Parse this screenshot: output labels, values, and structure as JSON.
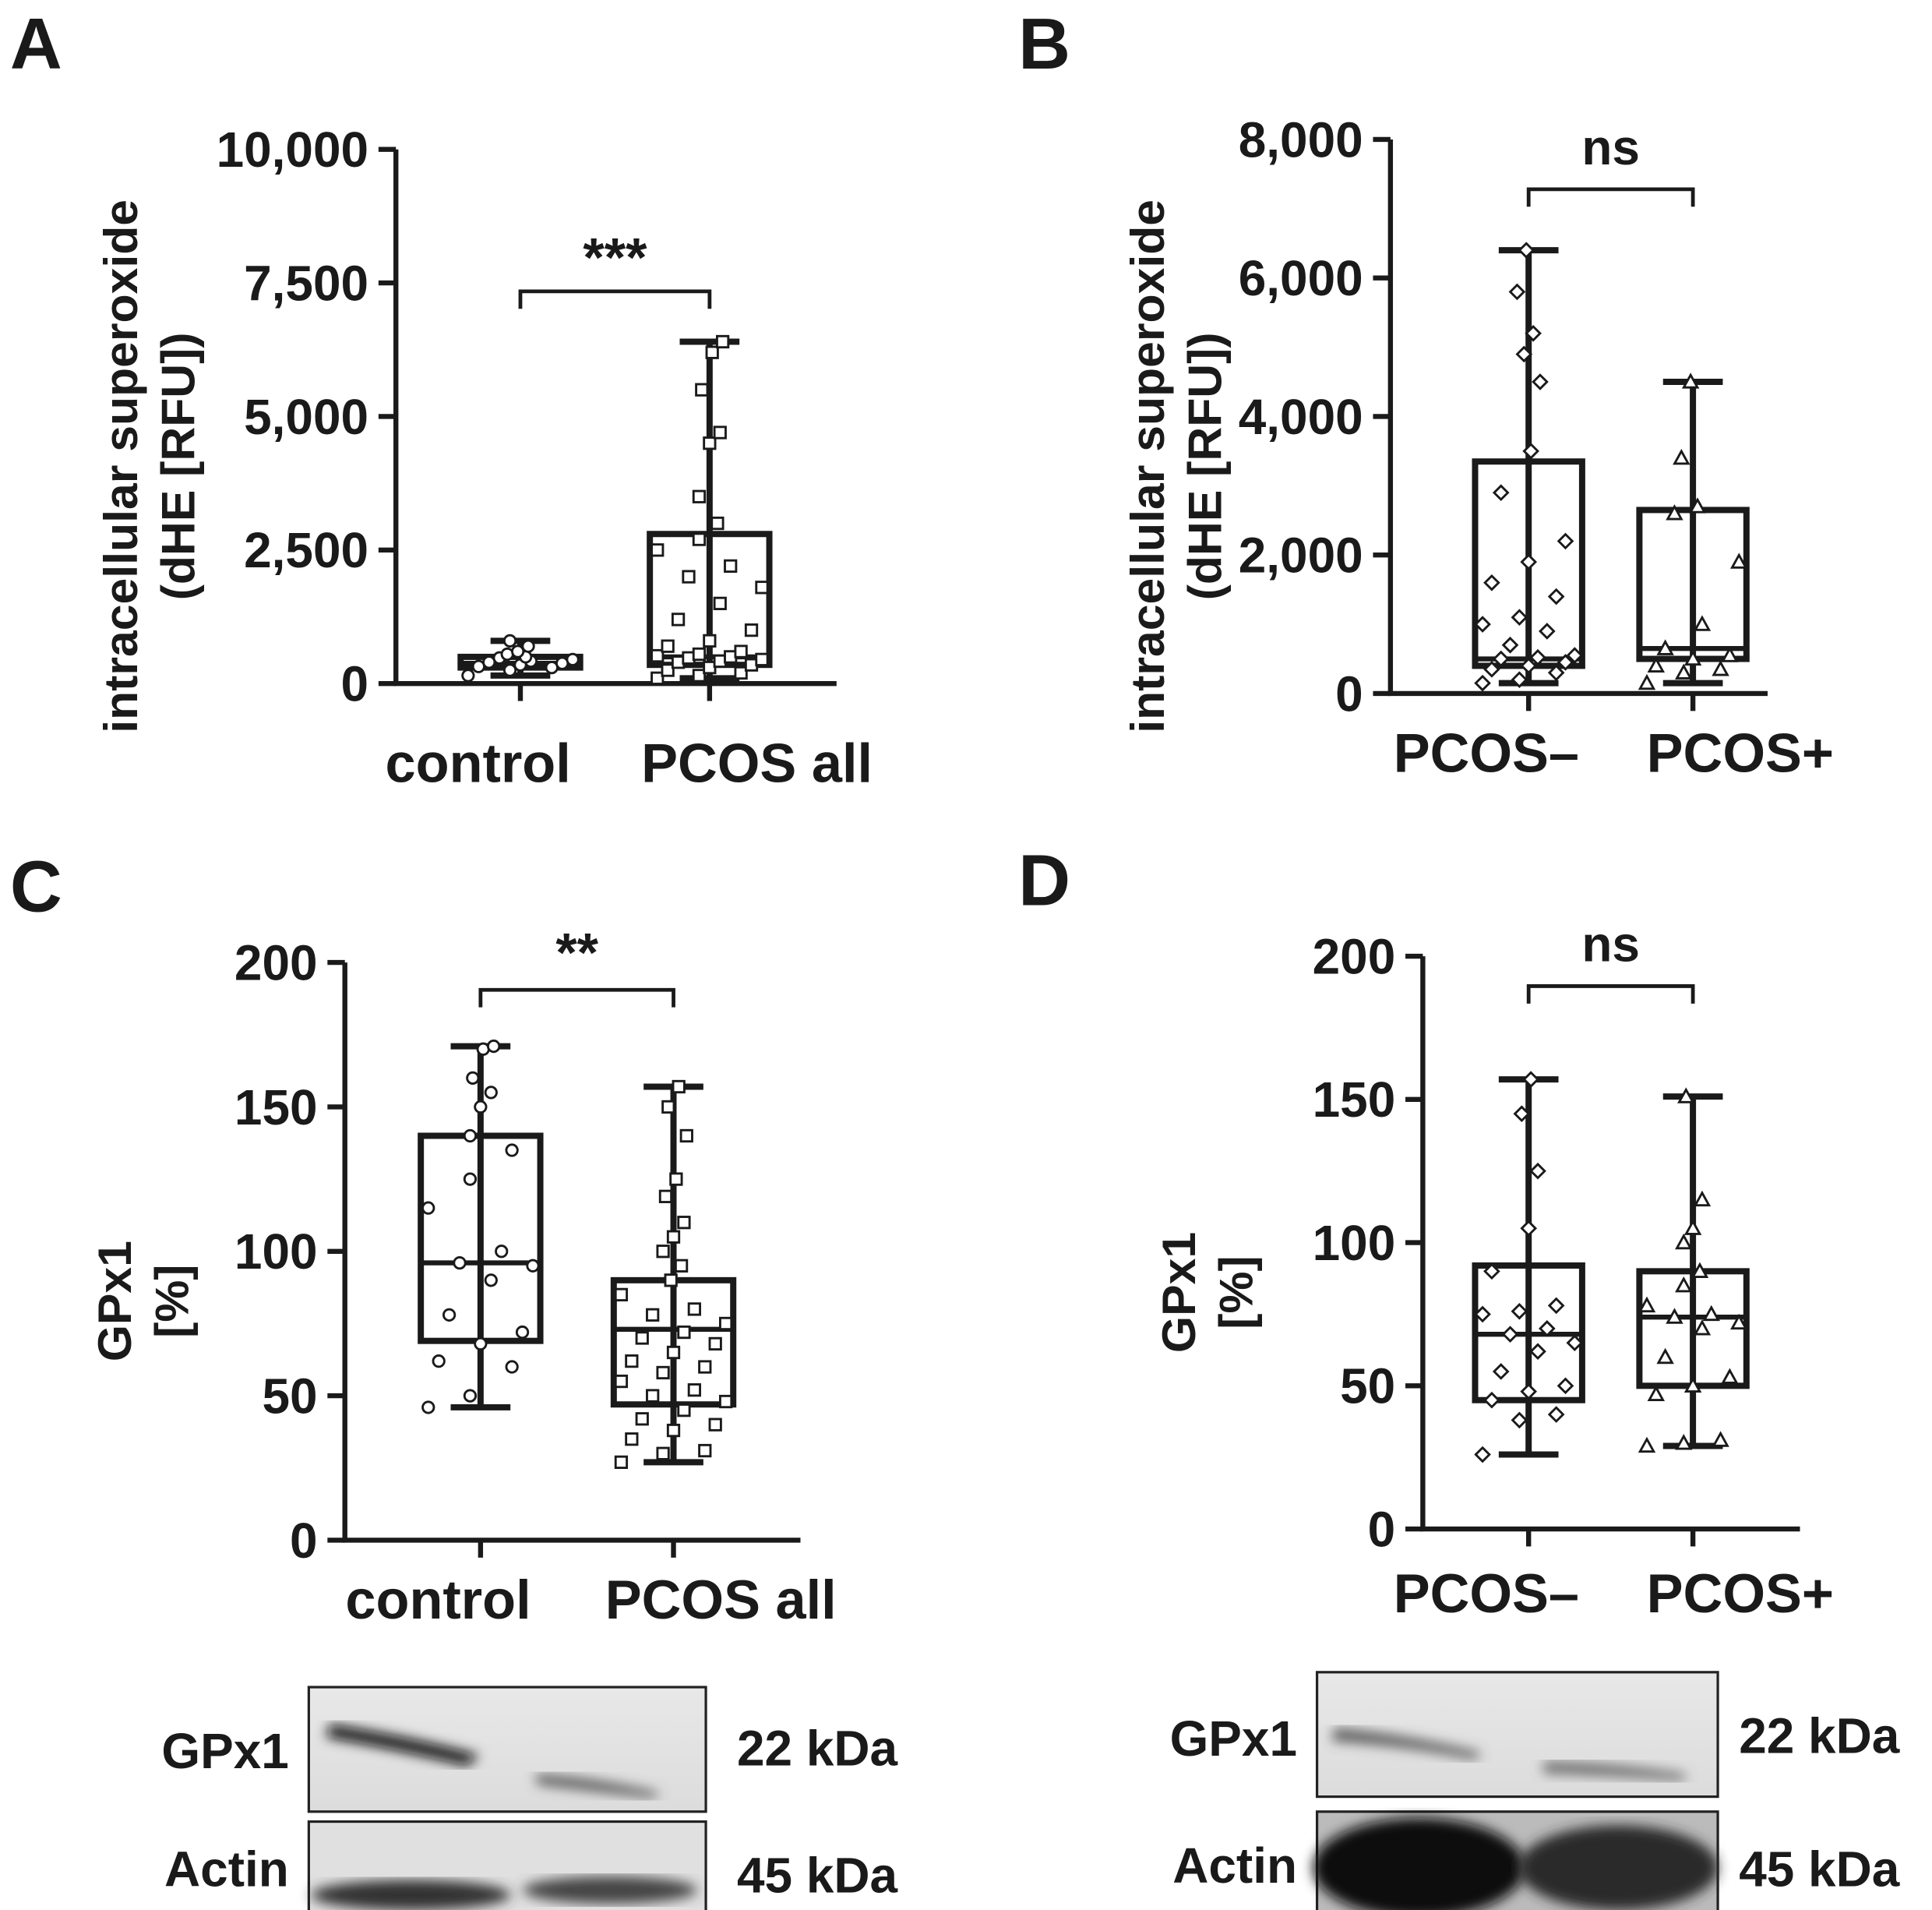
{
  "panels": [
    "A",
    "B",
    "C",
    "D"
  ],
  "chart_data": [
    {
      "type": "box",
      "panel": "A",
      "ylabel": [
        "intracellular superoxide",
        "(dHE [RFU])"
      ],
      "ylim": [
        0,
        10000
      ],
      "yticks": [
        0,
        2500,
        5000,
        7500,
        10000
      ],
      "ytick_labels": [
        "0",
        "2,500",
        "5,000",
        "7,500",
        "10,000"
      ],
      "categories": [
        "control",
        "PCOS all"
      ],
      "significance": "***",
      "groups": [
        {
          "name": "control",
          "marker": "circle",
          "min": 150,
          "q1": 300,
          "median": 380,
          "q3": 500,
          "max": 800,
          "points": [
            150,
            250,
            300,
            320,
            350,
            380,
            400,
            420,
            450,
            480,
            500,
            550,
            600,
            700,
            800
          ]
        },
        {
          "name": "PCOS all",
          "marker": "square",
          "min": 100,
          "q1": 350,
          "median": 500,
          "q3": 2800,
          "max": 6400,
          "points": [
            100,
            150,
            200,
            250,
            300,
            350,
            400,
            420,
            450,
            480,
            500,
            520,
            550,
            600,
            700,
            800,
            1000,
            1200,
            1500,
            1800,
            2000,
            2200,
            2500,
            2700,
            3000,
            3500,
            4500,
            4700,
            5500,
            6200,
            6400
          ]
        }
      ]
    },
    {
      "type": "box",
      "panel": "B",
      "ylabel": [
        "intracellular superoxide",
        "(dHE [RFU])"
      ],
      "ylim": [
        0,
        8000
      ],
      "yticks": [
        0,
        2000,
        4000,
        6000,
        8000
      ],
      "ytick_labels": [
        "0",
        "2,000",
        "4,000",
        "6,000",
        "8,000"
      ],
      "categories": [
        "PCOS–",
        "PCOS+"
      ],
      "significance": "ns",
      "groups": [
        {
          "name": "PCOS–",
          "marker": "diamond",
          "min": 150,
          "q1": 400,
          "median": 500,
          "q3": 3350,
          "max": 6400,
          "points": [
            150,
            200,
            300,
            350,
            400,
            450,
            500,
            520,
            550,
            700,
            900,
            1000,
            1100,
            1400,
            1600,
            1900,
            2200,
            2900,
            3500,
            4500,
            4900,
            5200,
            5800,
            6400
          ]
        },
        {
          "name": "PCOS+",
          "marker": "triangle",
          "min": 150,
          "q1": 500,
          "median": 650,
          "q3": 2650,
          "max": 4500,
          "points": [
            150,
            300,
            350,
            400,
            500,
            550,
            650,
            1000,
            1900,
            2600,
            2700,
            3400,
            4500
          ]
        }
      ]
    },
    {
      "type": "box",
      "panel": "C",
      "ylabel": [
        "GPx1",
        "[%]"
      ],
      "ylim": [
        0,
        200
      ],
      "yticks": [
        0,
        50,
        100,
        150,
        200
      ],
      "ytick_labels": [
        "0",
        "50",
        "100",
        "150",
        "200"
      ],
      "categories": [
        "control",
        "PCOS all"
      ],
      "significance": "**",
      "groups": [
        {
          "name": "control",
          "marker": "circle",
          "min": 46,
          "q1": 69,
          "median": 96,
          "q3": 140,
          "max": 171,
          "points": [
            46,
            50,
            60,
            62,
            68,
            72,
            78,
            90,
            95,
            96,
            100,
            115,
            125,
            135,
            140,
            150,
            155,
            160,
            170,
            171
          ]
        },
        {
          "name": "PCOS all",
          "marker": "square",
          "min": 27,
          "q1": 47,
          "median": 73,
          "q3": 90,
          "max": 157,
          "points": [
            27,
            30,
            31,
            35,
            38,
            40,
            42,
            45,
            48,
            50,
            52,
            55,
            58,
            60,
            62,
            65,
            68,
            70,
            72,
            75,
            78,
            80,
            85,
            90,
            95,
            100,
            105,
            110,
            119,
            125,
            140,
            150,
            157
          ]
        }
      ]
    },
    {
      "type": "box",
      "panel": "D",
      "ylabel": [
        "GPx1",
        "[%]"
      ],
      "ylim": [
        0,
        200
      ],
      "yticks": [
        0,
        50,
        100,
        150,
        200
      ],
      "ytick_labels": [
        "0",
        "50",
        "100",
        "150",
        "200"
      ],
      "categories": [
        "PCOS–",
        "PCOS+"
      ],
      "significance": "ns",
      "groups": [
        {
          "name": "PCOS–",
          "marker": "diamond",
          "min": 26,
          "q1": 45,
          "median": 68,
          "q3": 92,
          "max": 157,
          "points": [
            26,
            38,
            40,
            45,
            48,
            50,
            55,
            62,
            65,
            68,
            70,
            75,
            76,
            78,
            90,
            105,
            125,
            145,
            157
          ]
        },
        {
          "name": "PCOS+",
          "marker": "triangle",
          "min": 29,
          "q1": 50,
          "median": 74,
          "q3": 90,
          "max": 151,
          "points": [
            29,
            30,
            31,
            47,
            50,
            53,
            60,
            70,
            72,
            74,
            75,
            78,
            85,
            90,
            100,
            105,
            115,
            151
          ]
        }
      ]
    }
  ],
  "blots": [
    {
      "panel": "C",
      "rows": [
        {
          "protein": "GPx1",
          "size": "22 kDa"
        },
        {
          "protein": "Actin",
          "size": "45 kDa"
        }
      ]
    },
    {
      "panel": "D",
      "rows": [
        {
          "protein": "GPx1",
          "size": "22 kDa"
        },
        {
          "protein": "Actin",
          "size": "45 kDa"
        }
      ]
    }
  ]
}
